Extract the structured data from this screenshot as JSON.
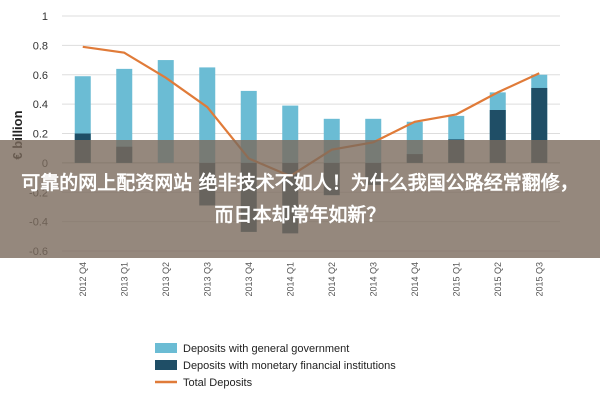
{
  "overlay": {
    "title": "可靠的网上配资网站 绝非技术不如人！为什么我国公路经常翻修，而日本却常年如新？"
  },
  "colors": {
    "light": "#6bbcd4",
    "dark": "#1f4e66",
    "line": "#e07b39",
    "grid": "#dddddd"
  },
  "chart_data": {
    "type": "bar",
    "ylabel": "€ billion",
    "ylim": [
      -0.7,
      1.0
    ],
    "yticks": [
      1,
      0.8,
      0.6,
      0.4,
      0.2,
      0,
      -0.2,
      -0.4,
      -0.6
    ],
    "ytick_labels": [
      "1",
      "0.8",
      "0.6",
      "0.4",
      "0.2",
      "0",
      "-0.2",
      "-0.4",
      "-0.6"
    ],
    "categories": [
      "2012 Q4",
      "2013 Q1",
      "2013 Q2",
      "2013 Q3",
      "2013 Q4",
      "2014 Q1",
      "2014 Q2",
      "2014 Q3",
      "2014 Q4",
      "2015 Q1",
      "2015 Q2",
      "2015 Q3"
    ],
    "series": [
      {
        "name": "Deposits with general government",
        "kind": "bar",
        "color_key": "light",
        "values": [
          0.59,
          0.64,
          0.7,
          0.65,
          0.49,
          0.39,
          0.3,
          0.3,
          0.28,
          0.32,
          0.48,
          0.6
        ]
      },
      {
        "name": "Deposits with monetary financial institutions",
        "kind": "bar",
        "color_key": "dark",
        "values": [
          0.2,
          0.11,
          0.0,
          -0.29,
          -0.47,
          -0.48,
          -0.22,
          -0.15,
          0.06,
          0.16,
          0.36,
          0.51
        ]
      },
      {
        "name": "Total Deposits",
        "kind": "line",
        "color_key": "line",
        "values": [
          0.79,
          0.75,
          0.58,
          0.38,
          0.03,
          -0.09,
          0.09,
          0.14,
          0.28,
          0.33,
          0.48,
          0.61
        ]
      }
    ]
  }
}
